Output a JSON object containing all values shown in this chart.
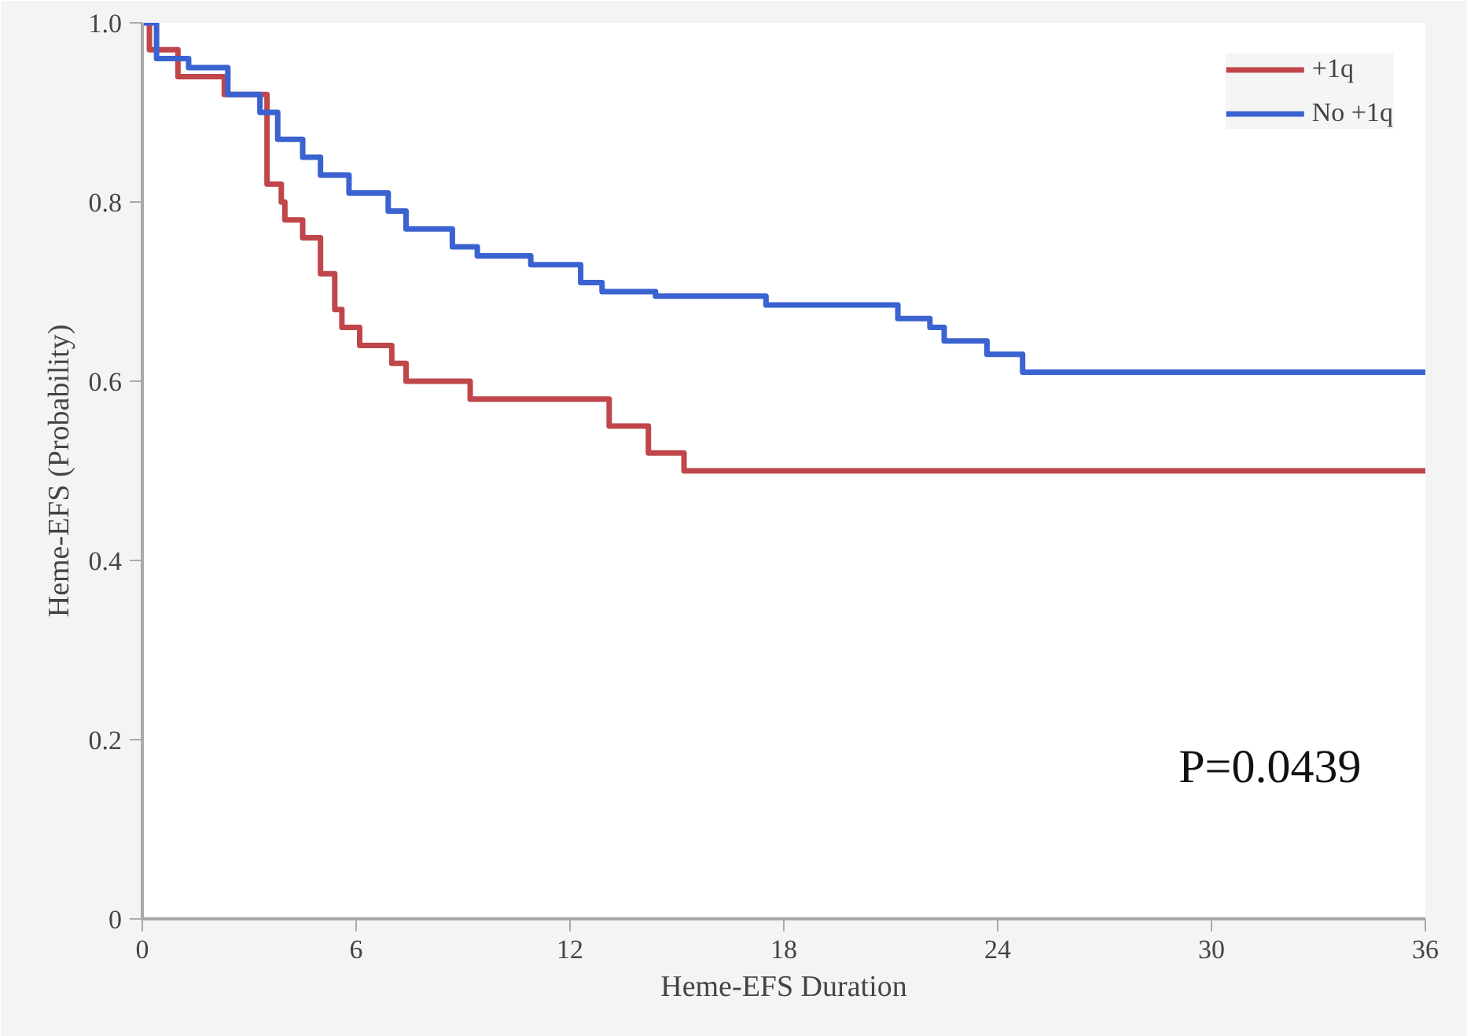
{
  "chart_data": {
    "type": "step",
    "xlabel": "Heme-EFS Duration",
    "ylabel": "Heme-EFS (Probability)",
    "xlim": [
      0,
      36
    ],
    "ylim": [
      0,
      1.0
    ],
    "xticks": [
      0,
      6,
      12,
      18,
      24,
      30,
      36
    ],
    "yticks": [
      0,
      0.2,
      0.4,
      0.6,
      0.8,
      {
        "value": 1.0,
        "label": "1.0"
      }
    ],
    "grid": false,
    "legend": "top right",
    "marker": "none",
    "line_style": "solid",
    "annotations": [
      "P=0.0439"
    ],
    "series": [
      {
        "name": "+1q",
        "color": "#c0464a",
        "x": [
          0,
          0.2,
          1.0,
          2.3,
          3.5,
          3.9,
          4.0,
          4.5,
          5.0,
          5.4,
          5.6,
          6.1,
          7.0,
          7.4,
          9.2,
          13.1,
          14.2,
          15.2,
          36
        ],
        "values": [
          1.0,
          0.97,
          0.94,
          0.92,
          0.82,
          0.8,
          0.78,
          0.76,
          0.72,
          0.68,
          0.66,
          0.64,
          0.62,
          0.6,
          0.58,
          0.55,
          0.52,
          0.5,
          0.5
        ]
      },
      {
        "name": "No +1q",
        "color": "#3a62d0",
        "x": [
          0,
          0.4,
          1.3,
          2.4,
          3.3,
          3.8,
          4.5,
          5.0,
          5.8,
          6.9,
          7.4,
          8.7,
          9.4,
          10.9,
          12.3,
          12.9,
          14.4,
          17.5,
          21.2,
          22.1,
          22.5,
          23.7,
          24.7,
          36
        ],
        "values": [
          1.0,
          0.96,
          0.95,
          0.92,
          0.9,
          0.87,
          0.85,
          0.83,
          0.81,
          0.79,
          0.77,
          0.75,
          0.74,
          0.73,
          0.71,
          0.7,
          0.695,
          0.685,
          0.67,
          0.66,
          0.645,
          0.63,
          0.61,
          0.61
        ]
      }
    ]
  }
}
